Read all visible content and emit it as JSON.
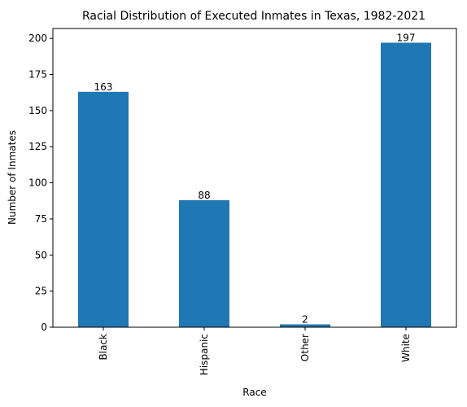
{
  "chart_data": {
    "type": "bar",
    "title": "Racial Distribution of Executed Inmates in Texas, 1982-2021",
    "xlabel": "Race",
    "ylabel": "Number of Inmates",
    "categories": [
      "Black",
      "Hispanic",
      "Other",
      "White"
    ],
    "values": [
      163,
      88,
      2,
      197
    ],
    "data_labels": [
      "163",
      "88",
      "2",
      "197"
    ],
    "ylim": [
      0,
      206.85
    ],
    "yticks": [
      0,
      25,
      50,
      75,
      100,
      125,
      150,
      175,
      200
    ],
    "ytick_labels": [
      "0",
      "25",
      "50",
      "75",
      "100",
      "125",
      "150",
      "175",
      "200"
    ],
    "bar_color": "#1f77b4",
    "grid": false,
    "legend": "none"
  }
}
